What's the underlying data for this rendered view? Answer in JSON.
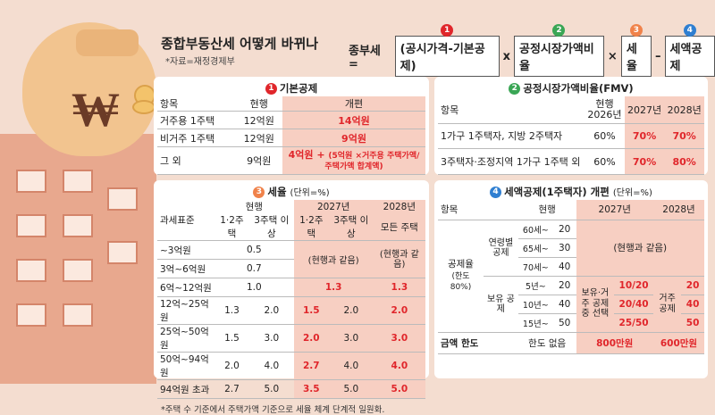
{
  "header": {
    "title": "종합부동산세 어떻게 바뀌나",
    "source": "*자료=재정경제부"
  },
  "formula": {
    "lhs": "종부세 =",
    "term1": "(공시가격-기본공제)",
    "times1": "x",
    "term2": "공정시장가액비율",
    "times2": "×",
    "term3": "세율",
    "minus": "–",
    "term4": "세액공제",
    "nums": [
      "1",
      "2",
      "3",
      "4"
    ]
  },
  "colors": {
    "n1": "#e0262b",
    "n2": "#3aa655",
    "n3": "#f0824a",
    "n4": "#2f7fd1",
    "highlight": "#f7cfc2",
    "red": "#e0262b"
  },
  "p1": {
    "num": "1",
    "title": "기본공제",
    "headers": [
      "항목",
      "현행",
      "개편"
    ],
    "rows": [
      {
        "item": "거주용 1주택",
        "current": "12억원",
        "new": "14억원"
      },
      {
        "item": "비거주 1주택",
        "current": "12억원",
        "new": "9억원"
      },
      {
        "item": "그 외",
        "current": "9억원",
        "new_a": "4억원 +",
        "new_b": "(5억원 ×거주용 주택가액/주택가액 합계액)"
      }
    ]
  },
  "p2": {
    "num": "2",
    "title": "공정시장가액비율(FMV)",
    "headers": {
      "item": "항목",
      "current_a": "현행",
      "current_b": "2026년",
      "y2027": "2027년",
      "y2028": "2028년"
    },
    "rows": [
      {
        "item": "1가구 1주택자, 지방 2주택자",
        "current": "60%",
        "y2027": "70%",
        "y2028": "70%"
      },
      {
        "item": "3주택자·조정지역 1가구 1주택 외",
        "current": "60%",
        "y2027": "70%",
        "y2028": "80%"
      }
    ]
  },
  "p3": {
    "num": "3",
    "title": "세율",
    "unit": "(단위=%)",
    "headers": {
      "base": "과세표준",
      "current": "현행",
      "c1": "1·2주택",
      "c2": "3주택 이상",
      "y2027": "2027년",
      "n1": "1·2주택",
      "n2": "3주택 이상",
      "y2028": "2028년",
      "n3": "모든 주택"
    },
    "same_2027": "(현행과 같음)",
    "same_2028": "(현행과 같음)",
    "rows": [
      {
        "base": "~3억원",
        "single": "0.5"
      },
      {
        "base": "3억~6억원",
        "single": "0.7"
      },
      {
        "base": "6억~12억원",
        "single": "1.0",
        "merged27": "1.3",
        "y2028": "1.3"
      },
      {
        "base": "12억~25억원",
        "c1": "1.3",
        "c2": "2.0",
        "n1": "1.5",
        "n2": "2.0",
        "y2028": "2.0"
      },
      {
        "base": "25억~50억원",
        "c1": "1.5",
        "c2": "3.0",
        "n1": "2.0",
        "n2": "3.0",
        "y2028": "3.0"
      },
      {
        "base": "50억~94억원",
        "c1": "2.0",
        "c2": "4.0",
        "n1": "2.7",
        "n2": "4.0",
        "y2028": "4.0"
      },
      {
        "base": "94억원 초과",
        "c1": "2.7",
        "c2": "5.0",
        "n1": "3.5",
        "n2": "5.0",
        "y2028": "5.0"
      }
    ],
    "footnote": "*주택 수 기준에서 주택가액 기준으로 세율 체계 단계적 일원화."
  },
  "p4": {
    "num": "4",
    "title": "세액공제(1주택자) 개편",
    "unit": "(단위=%)",
    "headers": {
      "item": "항목",
      "current": "현행",
      "y2027": "2027년",
      "y2028": "2028년"
    },
    "rate_label": "공제율",
    "rate_sub": "(한도 80%)",
    "age_label": "연령별 공제",
    "hold_label": "보유 공제",
    "age_rows": [
      {
        "range": "60세~",
        "val": "20"
      },
      {
        "range": "65세~",
        "val": "30"
      },
      {
        "range": "70세~",
        "val": "40"
      }
    ],
    "hold_rows": [
      {
        "range": "5년~",
        "val": "20"
      },
      {
        "range": "10년~",
        "val": "40"
      },
      {
        "range": "15년~",
        "val": "50"
      }
    ],
    "same": "(현행과 같음)",
    "combo_label": "보유·거주 공제 중 선택",
    "combo_vals": [
      "10/20",
      "20/40",
      "25/50"
    ],
    "res_label": "거주 공제",
    "res_vals": [
      "20",
      "40",
      "50"
    ],
    "limit_label": "금액 한도",
    "limit_current": "한도 없음",
    "limit_2027": "800만원",
    "limit_2028": "600만원"
  }
}
